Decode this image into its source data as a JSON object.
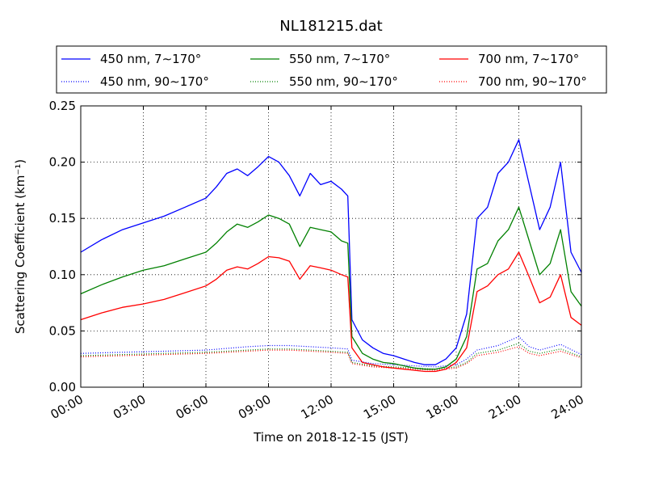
{
  "chart_data": {
    "type": "line",
    "title": "NL181215.dat",
    "xlabel": "Time on 2018-12-15 (JST)",
    "ylabel": "Scattering Coefficient (km⁻¹)",
    "xlim": [
      0,
      24
    ],
    "ylim": [
      0,
      0.25
    ],
    "x_ticks": [
      "00:00",
      "03:00",
      "06:00",
      "09:00",
      "12:00",
      "15:00",
      "18:00",
      "21:00",
      "24:00"
    ],
    "y_ticks": [
      "0.00",
      "0.05",
      "0.10",
      "0.15",
      "0.20",
      "0.25"
    ],
    "grid": true,
    "legend_position": "top",
    "series": [
      {
        "name": "450 nm, 7∼170°",
        "color": "#0000ff",
        "style": "solid",
        "x": [
          0,
          1,
          2,
          3,
          4,
          5,
          6,
          6.5,
          7,
          7.5,
          8,
          8.5,
          9,
          9.5,
          10,
          10.5,
          11,
          11.5,
          12,
          12.5,
          12.8,
          13,
          13.5,
          14,
          14.5,
          15,
          15.5,
          16,
          16.5,
          17,
          17.5,
          18,
          18.5,
          19,
          19.5,
          20,
          20.5,
          21,
          21.5,
          22,
          22.5,
          23,
          23.5,
          24
        ],
        "y": [
          0.12,
          0.131,
          0.14,
          0.146,
          0.152,
          0.16,
          0.168,
          0.178,
          0.19,
          0.194,
          0.188,
          0.196,
          0.205,
          0.2,
          0.188,
          0.17,
          0.19,
          0.18,
          0.183,
          0.176,
          0.17,
          0.06,
          0.042,
          0.035,
          0.03,
          0.028,
          0.025,
          0.022,
          0.02,
          0.02,
          0.025,
          0.035,
          0.065,
          0.15,
          0.16,
          0.19,
          0.2,
          0.22,
          0.18,
          0.14,
          0.16,
          0.2,
          0.12,
          0.102
        ]
      },
      {
        "name": "550 nm, 7∼170°",
        "color": "#008000",
        "style": "solid",
        "x": [
          0,
          1,
          2,
          3,
          4,
          5,
          6,
          6.5,
          7,
          7.5,
          8,
          8.5,
          9,
          9.5,
          10,
          10.5,
          11,
          11.5,
          12,
          12.5,
          12.8,
          13,
          13.5,
          14,
          14.5,
          15,
          15.5,
          16,
          16.5,
          17,
          17.5,
          18,
          18.5,
          19,
          19.5,
          20,
          20.5,
          21,
          21.5,
          22,
          22.5,
          23,
          23.5,
          24
        ],
        "y": [
          0.083,
          0.091,
          0.098,
          0.104,
          0.108,
          0.114,
          0.12,
          0.128,
          0.138,
          0.145,
          0.142,
          0.147,
          0.153,
          0.15,
          0.145,
          0.125,
          0.142,
          0.14,
          0.138,
          0.13,
          0.128,
          0.045,
          0.03,
          0.025,
          0.022,
          0.021,
          0.019,
          0.017,
          0.016,
          0.016,
          0.018,
          0.025,
          0.045,
          0.105,
          0.11,
          0.13,
          0.14,
          0.16,
          0.13,
          0.1,
          0.11,
          0.14,
          0.085,
          0.072
        ]
      },
      {
        "name": "700 nm, 7∼170°",
        "color": "#ff0000",
        "style": "solid",
        "x": [
          0,
          1,
          2,
          3,
          4,
          5,
          6,
          6.5,
          7,
          7.5,
          8,
          8.5,
          9,
          9.5,
          10,
          10.5,
          11,
          11.5,
          12,
          12.5,
          12.8,
          13,
          13.5,
          14,
          14.5,
          15,
          15.5,
          16,
          16.5,
          17,
          17.5,
          18,
          18.5,
          19,
          19.5,
          20,
          20.5,
          21,
          21.5,
          22,
          22.5,
          23,
          23.5,
          24
        ],
        "y": [
          0.06,
          0.066,
          0.071,
          0.074,
          0.078,
          0.084,
          0.09,
          0.096,
          0.104,
          0.107,
          0.105,
          0.11,
          0.116,
          0.115,
          0.112,
          0.096,
          0.108,
          0.106,
          0.104,
          0.1,
          0.098,
          0.035,
          0.022,
          0.02,
          0.018,
          0.017,
          0.016,
          0.015,
          0.014,
          0.014,
          0.016,
          0.022,
          0.035,
          0.085,
          0.09,
          0.1,
          0.105,
          0.12,
          0.098,
          0.075,
          0.08,
          0.1,
          0.062,
          0.055
        ]
      },
      {
        "name": "450 nm, 90∼170°",
        "color": "#0000ff",
        "style": "dotted",
        "x": [
          0,
          2,
          4,
          6,
          8,
          9,
          10,
          11,
          12,
          12.8,
          13,
          14,
          15,
          16,
          17,
          18,
          18.5,
          19,
          20,
          21,
          21.5,
          22,
          23,
          24
        ],
        "y": [
          0.03,
          0.031,
          0.032,
          0.033,
          0.036,
          0.037,
          0.037,
          0.036,
          0.035,
          0.034,
          0.024,
          0.021,
          0.02,
          0.019,
          0.018,
          0.02,
          0.025,
          0.033,
          0.037,
          0.045,
          0.036,
          0.033,
          0.038,
          0.029
        ]
      },
      {
        "name": "550 nm, 90∼170°",
        "color": "#008000",
        "style": "dotted",
        "x": [
          0,
          2,
          4,
          6,
          8,
          9,
          10,
          11,
          12,
          12.8,
          13,
          14,
          15,
          16,
          17,
          18,
          18.5,
          19,
          20,
          21,
          21.5,
          22,
          23,
          24
        ],
        "y": [
          0.028,
          0.029,
          0.03,
          0.031,
          0.033,
          0.034,
          0.034,
          0.033,
          0.032,
          0.031,
          0.022,
          0.019,
          0.018,
          0.017,
          0.016,
          0.018,
          0.022,
          0.03,
          0.033,
          0.039,
          0.032,
          0.03,
          0.034,
          0.027
        ]
      },
      {
        "name": "700 nm, 90∼170°",
        "color": "#ff0000",
        "style": "dotted",
        "x": [
          0,
          2,
          4,
          6,
          8,
          9,
          10,
          11,
          12,
          12.8,
          13,
          14,
          15,
          16,
          17,
          18,
          18.5,
          19,
          20,
          21,
          21.5,
          22,
          23,
          24
        ],
        "y": [
          0.027,
          0.028,
          0.029,
          0.03,
          0.032,
          0.033,
          0.033,
          0.032,
          0.031,
          0.03,
          0.021,
          0.018,
          0.017,
          0.016,
          0.015,
          0.017,
          0.021,
          0.028,
          0.031,
          0.036,
          0.03,
          0.028,
          0.032,
          0.026
        ]
      }
    ]
  }
}
